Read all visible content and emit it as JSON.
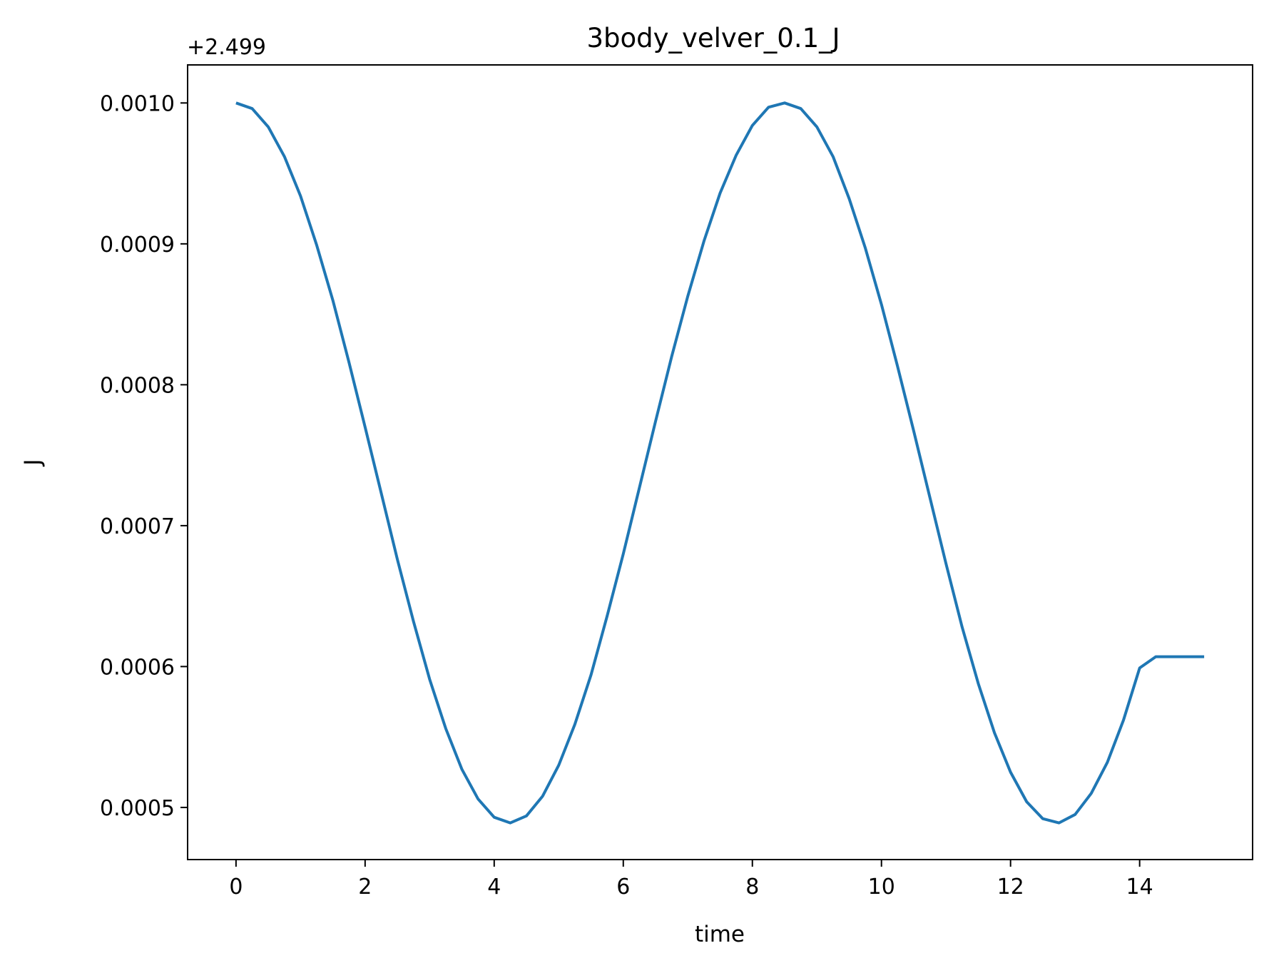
{
  "chart_data": {
    "type": "line",
    "title": "3body_velver_0.1_J",
    "xlabel": "time",
    "ylabel": "J",
    "y_offset_label": "+2.499",
    "xlim": [
      -0.75,
      15.75
    ],
    "ylim": [
      0.000463,
      0.001027
    ],
    "x_ticks": [
      0,
      2,
      4,
      6,
      8,
      10,
      12,
      14
    ],
    "x_tick_labels": [
      "0",
      "2",
      "4",
      "6",
      "8",
      "10",
      "12",
      "14"
    ],
    "y_ticks": [
      0.0005,
      0.0006,
      0.0007,
      0.0008,
      0.0009,
      0.001
    ],
    "y_tick_labels": [
      "0.0005",
      "0.0006",
      "0.0007",
      "0.0008",
      "0.0009",
      "0.0010"
    ],
    "grid": false,
    "series": [
      {
        "color": "#1f77b4",
        "x": [
          0,
          0.25,
          0.5,
          0.75,
          1,
          1.25,
          1.5,
          1.75,
          2,
          2.25,
          2.5,
          2.75,
          3,
          3.25,
          3.5,
          3.75,
          4,
          4.25,
          4.5,
          4.75,
          5,
          5.25,
          5.5,
          5.75,
          6,
          6.25,
          6.5,
          6.75,
          7,
          7.25,
          7.5,
          7.75,
          8,
          8.25,
          8.5,
          8.75,
          9,
          9.25,
          9.5,
          9.75,
          10,
          10.25,
          10.5,
          10.75,
          11,
          11.25,
          11.5,
          11.75,
          12,
          12.25,
          12.5,
          12.75,
          13,
          13.25,
          13.5,
          13.75,
          14,
          14.25,
          14.5,
          14.75,
          15
        ],
        "y": [
          0.001,
          0.000996,
          0.000983,
          0.000962,
          0.000934,
          0.000899,
          0.00086,
          0.000816,
          0.00077,
          0.000723,
          0.000676,
          0.000632,
          0.000591,
          0.000556,
          0.000527,
          0.000506,
          0.000493,
          0.000489,
          0.000494,
          0.000508,
          0.00053,
          0.000559,
          0.000594,
          0.000636,
          0.00068,
          0.000727,
          0.000774,
          0.00082,
          0.000863,
          0.000902,
          0.000936,
          0.000963,
          0.000984,
          0.000997,
          0.001,
          0.000996,
          0.000983,
          0.000962,
          0.000932,
          0.000897,
          0.000857,
          0.000813,
          0.000767,
          0.00072,
          0.000673,
          0.000628,
          0.000588,
          0.000553,
          0.000525,
          0.000504,
          0.000492,
          0.000489,
          0.000495,
          0.00051,
          0.000532,
          0.000562,
          0.000599,
          0.000607,
          0.000607,
          0.000607,
          0.000607
        ]
      }
    ]
  }
}
